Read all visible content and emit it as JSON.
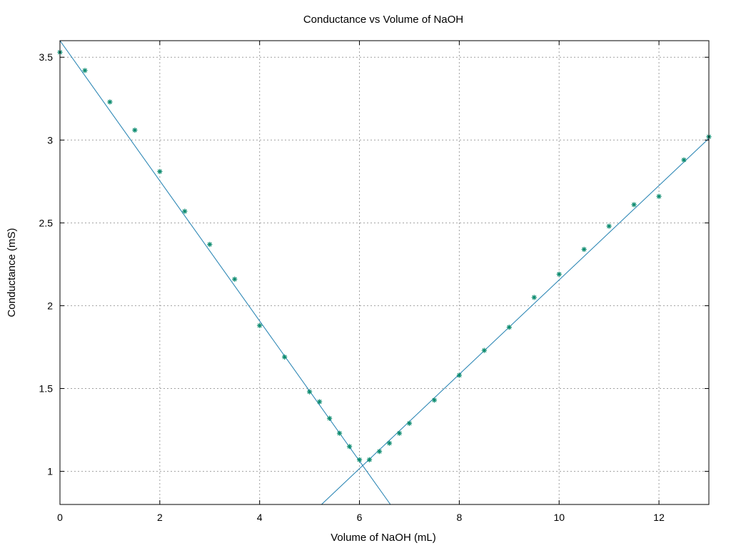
{
  "chart_data": {
    "type": "scatter",
    "title": "Conductance vs Volume of NaOH",
    "xlabel": "Volume of NaOH (mL)",
    "ylabel": "Conductance (mS)",
    "xlim": [
      0,
      13
    ],
    "ylim": [
      0.8,
      3.6
    ],
    "xticks": [
      0,
      2,
      4,
      6,
      8,
      10,
      12
    ],
    "yticks": [
      1,
      1.5,
      2,
      2.5,
      3,
      3.5
    ],
    "xtick_labels": [
      "0",
      "2",
      "4",
      "6",
      "8",
      "10",
      "12"
    ],
    "ytick_labels": [
      "1",
      "1.5",
      "2",
      "2.5",
      "3",
      "3.5"
    ],
    "grid": true,
    "legend": "none",
    "series": [
      {
        "marker": "asterisk",
        "color": "#0a8a6e",
        "x": [
          0,
          0.5,
          1,
          1.5,
          2,
          2.5,
          3,
          3.5,
          4,
          4.5,
          5,
          5.2,
          5.4,
          5.6,
          5.8,
          6,
          6.2,
          6.4,
          6.6,
          6.8,
          7,
          7.5,
          8,
          8.5,
          9,
          9.5,
          10,
          10.5,
          11,
          11.5,
          12,
          12.5,
          13
        ],
        "y": [
          3.53,
          3.42,
          3.23,
          3.06,
          2.81,
          2.57,
          2.37,
          2.16,
          1.88,
          1.69,
          1.48,
          1.42,
          1.32,
          1.23,
          1.15,
          1.07,
          1.07,
          1.12,
          1.17,
          1.23,
          1.29,
          1.43,
          1.58,
          1.73,
          1.87,
          2.05,
          2.19,
          2.34,
          2.48,
          2.61,
          2.66,
          2.88,
          3.02
        ]
      }
    ],
    "fit_lines": [
      {
        "color": "#1f7fb0",
        "x": [
          0,
          6.62
        ],
        "y": [
          3.6,
          0.8
        ]
      },
      {
        "color": "#1f7fb0",
        "x": [
          5.24,
          13
        ],
        "y": [
          0.8,
          3.01
        ]
      }
    ]
  }
}
